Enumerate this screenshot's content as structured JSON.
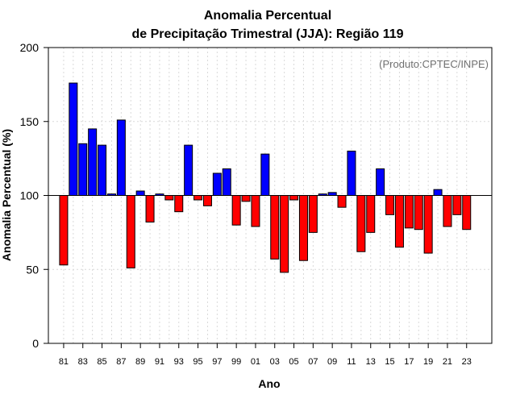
{
  "chart_data": {
    "type": "bar",
    "title_line1": "Anomalia Percentual",
    "title_line2": "de Precipitação Trimestral (JJA): Região 119",
    "credit": "(Produto:CPTEC/INPE)",
    "xlabel": "Ano",
    "ylabel": "Anomalia Percentual (%)",
    "ylim": [
      0,
      200
    ],
    "yticks": [
      0,
      50,
      100,
      150,
      200
    ],
    "baseline": 100,
    "grid": true,
    "colors": {
      "above": "#0000ff",
      "below": "#ff0000",
      "border": "#000000",
      "grid": "#d9d9d9"
    },
    "categories": [
      "81",
      "82",
      "83",
      "84",
      "85",
      "86",
      "87",
      "88",
      "89",
      "90",
      "91",
      "92",
      "93",
      "94",
      "95",
      "96",
      "97",
      "98",
      "99",
      "00",
      "01",
      "02",
      "03",
      "04",
      "05",
      "06",
      "07",
      "08",
      "09",
      "10",
      "11",
      "12",
      "13",
      "14",
      "15",
      "16",
      "17",
      "18",
      "19",
      "20",
      "21",
      "22",
      "23"
    ],
    "xtick_labels": [
      "81",
      "83",
      "85",
      "87",
      "89",
      "91",
      "93",
      "95",
      "97",
      "99",
      "01",
      "03",
      "05",
      "07",
      "09",
      "11",
      "13",
      "15",
      "17",
      "19",
      "21",
      "23"
    ],
    "values": [
      53,
      176,
      135,
      145,
      134,
      101,
      151,
      51,
      103,
      82,
      101,
      97,
      89,
      134,
      97,
      93,
      115,
      118,
      80,
      96,
      79,
      128,
      57,
      48,
      97,
      56,
      75,
      101,
      102,
      92,
      130,
      62,
      75,
      118,
      87,
      65,
      78,
      77,
      61,
      104,
      79,
      87,
      77
    ]
  }
}
